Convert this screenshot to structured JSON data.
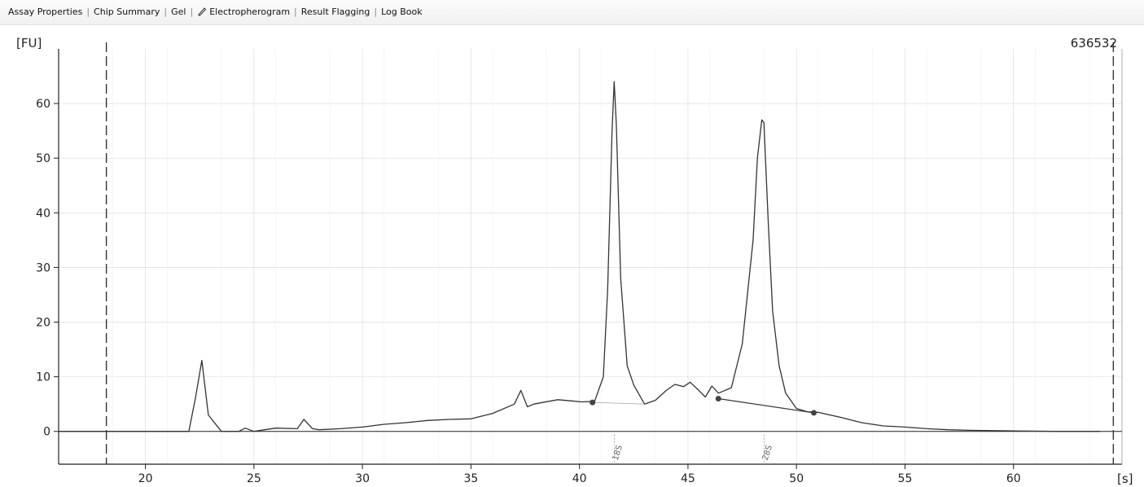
{
  "tabs": [
    {
      "label": "Assay Properties",
      "icon": null
    },
    {
      "label": "Chip Summary",
      "icon": null
    },
    {
      "label": "Gel",
      "icon": null
    },
    {
      "label": "Electropherogram",
      "icon": "pencil-icon",
      "active": true
    },
    {
      "label": "Result Flagging",
      "icon": null
    },
    {
      "label": "Log Book",
      "icon": null
    }
  ],
  "sample_id": "636532",
  "chart_data": {
    "type": "line",
    "title": "",
    "xlabel": "[s]",
    "ylabel": "[FU]",
    "xlim": [
      16,
      65
    ],
    "ylim": [
      -6,
      70
    ],
    "x_ticks": [
      20,
      25,
      30,
      35,
      40,
      45,
      50,
      55,
      60
    ],
    "y_ticks": [
      0,
      10,
      20,
      30,
      40,
      50,
      60
    ],
    "grid": true,
    "colors": {
      "trace": "#333333",
      "grid": "#d8d8d8",
      "marker": "#444444"
    },
    "series": [
      {
        "x": [
          16,
          18,
          20,
          22,
          22.3,
          22.6,
          22.9,
          23.5,
          24.3,
          24.6,
          25,
          26,
          27,
          27.3,
          27.7,
          28,
          29,
          30,
          31,
          32,
          33,
          34,
          35,
          36,
          37,
          37.3,
          37.6,
          37.9,
          38.3,
          39,
          39.6,
          40.1,
          40.7,
          41.1,
          41.3,
          41.5,
          41.6,
          41.7,
          41.9,
          42.2,
          42.5,
          43,
          43.5,
          44,
          44.4,
          44.8,
          45.1,
          45.5,
          45.8,
          46.1,
          46.4,
          47,
          47.5,
          48.0,
          48.2,
          48.4,
          48.5,
          48.7,
          48.9,
          49.2,
          49.5,
          50,
          50.5,
          51,
          52,
          53,
          54,
          55,
          56,
          57,
          58,
          60,
          62,
          64
        ],
        "y": [
          0,
          0,
          0,
          0,
          6,
          13,
          3,
          0,
          0,
          0.6,
          0,
          0.6,
          0.5,
          2.2,
          0.5,
          0.3,
          0.5,
          0.8,
          1.3,
          1.6,
          2,
          2.2,
          2.3,
          3.3,
          5,
          7.5,
          4.5,
          5,
          5.3,
          5.8,
          5.6,
          5.4,
          5.5,
          10,
          26,
          55,
          64,
          56,
          28,
          12,
          8.5,
          5,
          5.7,
          7.5,
          8.6,
          8.2,
          9,
          7.5,
          6.3,
          8.3,
          7,
          8,
          16,
          35,
          50,
          57,
          56.5,
          38,
          22,
          12,
          7,
          4.2,
          3.6,
          3.5,
          2.6,
          1.6,
          1,
          0.8,
          0.5,
          0.3,
          0.2,
          0.1,
          0,
          0
        ]
      }
    ],
    "integration_points": [
      {
        "x": 40.6,
        "y": 5.3
      },
      {
        "x": 46.4,
        "y": 6.0
      },
      {
        "x": 50.8,
        "y": 3.4
      }
    ],
    "ladder_markers": [
      {
        "x": 18.2
      },
      {
        "x": 64.6
      }
    ],
    "peak_labels": [
      {
        "x": 41.6,
        "text": "18S"
      },
      {
        "x": 48.5,
        "text": "28S"
      }
    ]
  }
}
